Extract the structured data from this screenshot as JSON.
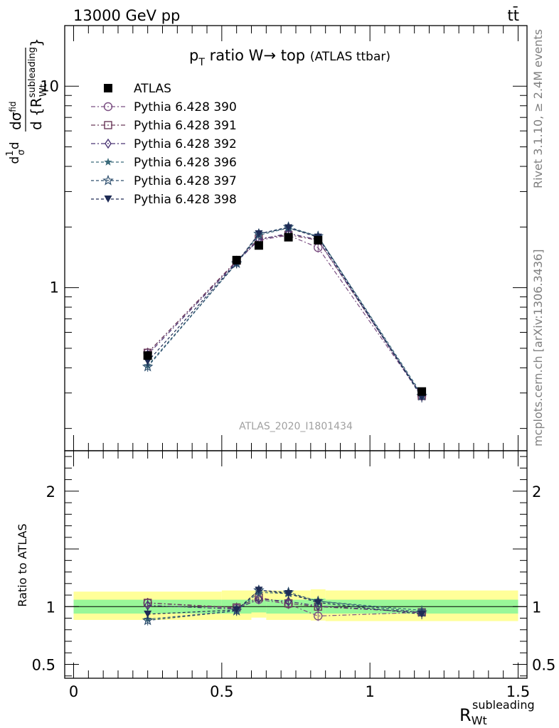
{
  "header": {
    "energy": "13000 GeV pp",
    "process": "tt̄"
  },
  "main": {
    "title_main": "p",
    "title_sub": "T",
    "title_rest": " ratio W→ top",
    "title_small": "(ATLAS ttbar)",
    "ylabel": "d σ^{fid} / d {R^{subleading}_{Wt}}",
    "watermark": "ATLAS_2020_I1801434",
    "yticks": [
      "10",
      "1"
    ]
  },
  "side": {
    "rivet": "Rivet 3.1.10, ≥ 2.4M events",
    "mcplots": "mcplots.cern.ch [arXiv:1306.3436]"
  },
  "ratio": {
    "ylabel": "Ratio to ATLAS",
    "yticks": [
      "2",
      "1",
      "0.5"
    ]
  },
  "xaxis": {
    "label_main": "R",
    "label_sub": "Wt",
    "label_sup": "subleading",
    "ticks": [
      "0",
      "0.5",
      "1",
      "1.5"
    ]
  },
  "legend": [
    {
      "name": "ATLAS",
      "marker": "square-filled",
      "color": "#000000"
    },
    {
      "name": "Pythia 6.428 390",
      "marker": "circle-open",
      "color": "#7b4f82"
    },
    {
      "name": "Pythia 6.428 391",
      "marker": "square-open",
      "color": "#6b3a5a"
    },
    {
      "name": "Pythia 6.428 392",
      "marker": "diamond-open",
      "color": "#4a3575"
    },
    {
      "name": "Pythia 6.428 396",
      "marker": "star-filled",
      "color": "#3a6a7a"
    },
    {
      "name": "Pythia 6.428 397",
      "marker": "star-open",
      "color": "#2e4f6e"
    },
    {
      "name": "Pythia 6.428 398",
      "marker": "triangle-down-filled",
      "color": "#1e2b55"
    }
  ],
  "chart_data": {
    "type": "line",
    "x_scale": "linear",
    "y_scale_main": "log",
    "xlim": [
      -0.03,
      1.53
    ],
    "ylim_main": [
      0.155,
      20
    ],
    "ylim_ratio": [
      0.38,
      2.35
    ],
    "x": [
      0.25,
      0.55,
      0.625,
      0.725,
      0.825,
      1.175
    ],
    "data": {
      "name": "ATLAS",
      "values": [
        0.46,
        1.37,
        1.62,
        1.78,
        1.72,
        0.305
      ]
    },
    "series": [
      {
        "name": "Pythia 6.428 390",
        "values": [
          0.475,
          1.35,
          1.72,
          1.82,
          1.58,
          0.29
        ]
      },
      {
        "name": "Pythia 6.428 391",
        "values": [
          0.475,
          1.36,
          1.75,
          1.83,
          1.72,
          0.29
        ]
      },
      {
        "name": "Pythia 6.428 392",
        "values": [
          0.465,
          1.34,
          1.73,
          1.86,
          1.73,
          0.29
        ]
      },
      {
        "name": "Pythia 6.428 396",
        "values": [
          0.41,
          1.32,
          1.82,
          1.98,
          1.8,
          0.295
        ]
      },
      {
        "name": "Pythia 6.428 397",
        "values": [
          0.405,
          1.32,
          1.85,
          2.0,
          1.8,
          0.29
        ]
      },
      {
        "name": "Pythia 6.428 398",
        "values": [
          0.43,
          1.33,
          1.85,
          1.98,
          1.78,
          0.285
        ]
      }
    ],
    "ratio_band_inner": [
      {
        "x0": 0.0,
        "x1": 0.5,
        "lo": 0.94,
        "hi": 1.06
      },
      {
        "x0": 0.5,
        "x1": 0.6,
        "lo": 0.94,
        "hi": 1.06
      },
      {
        "x0": 0.6,
        "x1": 0.65,
        "lo": 0.95,
        "hi": 1.06
      },
      {
        "x0": 0.65,
        "x1": 0.8,
        "lo": 0.94,
        "hi": 1.06
      },
      {
        "x0": 0.8,
        "x1": 0.85,
        "lo": 0.94,
        "hi": 1.07
      },
      {
        "x0": 0.85,
        "x1": 1.5,
        "lo": 0.94,
        "hi": 1.06
      }
    ],
    "ratio_band_outer": [
      {
        "x0": 0.0,
        "x1": 0.5,
        "lo": 0.885,
        "hi": 1.13
      },
      {
        "x0": 0.5,
        "x1": 0.6,
        "lo": 0.885,
        "hi": 1.14
      },
      {
        "x0": 0.6,
        "x1": 0.65,
        "lo": 0.905,
        "hi": 1.14
      },
      {
        "x0": 0.65,
        "x1": 0.8,
        "lo": 0.885,
        "hi": 1.14
      },
      {
        "x0": 0.8,
        "x1": 0.85,
        "lo": 0.88,
        "hi": 1.15
      },
      {
        "x0": 0.85,
        "x1": 1.5,
        "lo": 0.875,
        "hi": 1.14
      }
    ],
    "ratio_band_colors": {
      "inner": "#99f799",
      "outer": "#ffff99"
    }
  }
}
